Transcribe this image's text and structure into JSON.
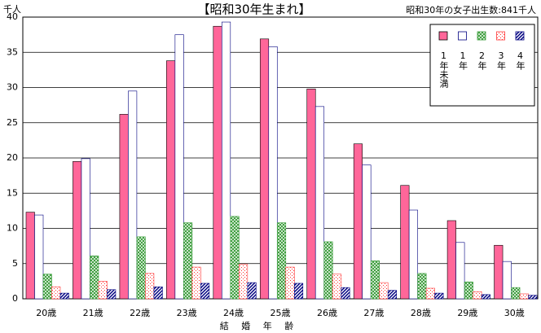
{
  "chart_data": {
    "type": "bar",
    "title": "【昭和30年生まれ】",
    "annotation": "昭和30年の女子出生数:841千人",
    "y_label": "千人",
    "x_label": "結 婚 年 齢",
    "categories": [
      "20歳",
      "21歳",
      "22歳",
      "23歳",
      "24歳",
      "25歳",
      "26歳",
      "27歳",
      "28歳",
      "29歳",
      "30歳"
    ],
    "series": [
      {
        "name": "1年未満",
        "color": "#ff6699",
        "fill": "solid",
        "values": [
          12.3,
          19.5,
          26.2,
          33.8,
          38.7,
          36.9,
          29.8,
          22.0,
          16.1,
          11.1,
          7.6
        ]
      },
      {
        "name": "1年",
        "color": "#000080",
        "fill": "hollow",
        "values": [
          11.9,
          19.9,
          29.5,
          37.5,
          39.3,
          35.8,
          27.3,
          19.0,
          12.6,
          8.0,
          5.3
        ]
      },
      {
        "name": "2年",
        "color": "#339933",
        "fill": "crosshatch",
        "values": [
          3.5,
          6.1,
          8.8,
          10.8,
          11.7,
          10.8,
          8.1,
          5.4,
          3.6,
          2.4,
          1.6
        ]
      },
      {
        "name": "3年",
        "color": "#ff3333",
        "fill": "dots",
        "values": [
          1.7,
          2.5,
          3.6,
          4.5,
          4.9,
          4.5,
          3.5,
          2.3,
          1.5,
          1.0,
          0.7
        ]
      },
      {
        "name": "4年",
        "color": "#000080",
        "fill": "diagonal",
        "values": [
          0.8,
          1.3,
          1.7,
          2.2,
          2.3,
          2.2,
          1.6,
          1.2,
          0.8,
          0.6,
          0.5
        ]
      }
    ],
    "ylim": [
      0,
      40
    ],
    "yticks": [
      0,
      5,
      10,
      15,
      20,
      25,
      30,
      35,
      40
    ],
    "grid": true,
    "legend": "top-right"
  }
}
